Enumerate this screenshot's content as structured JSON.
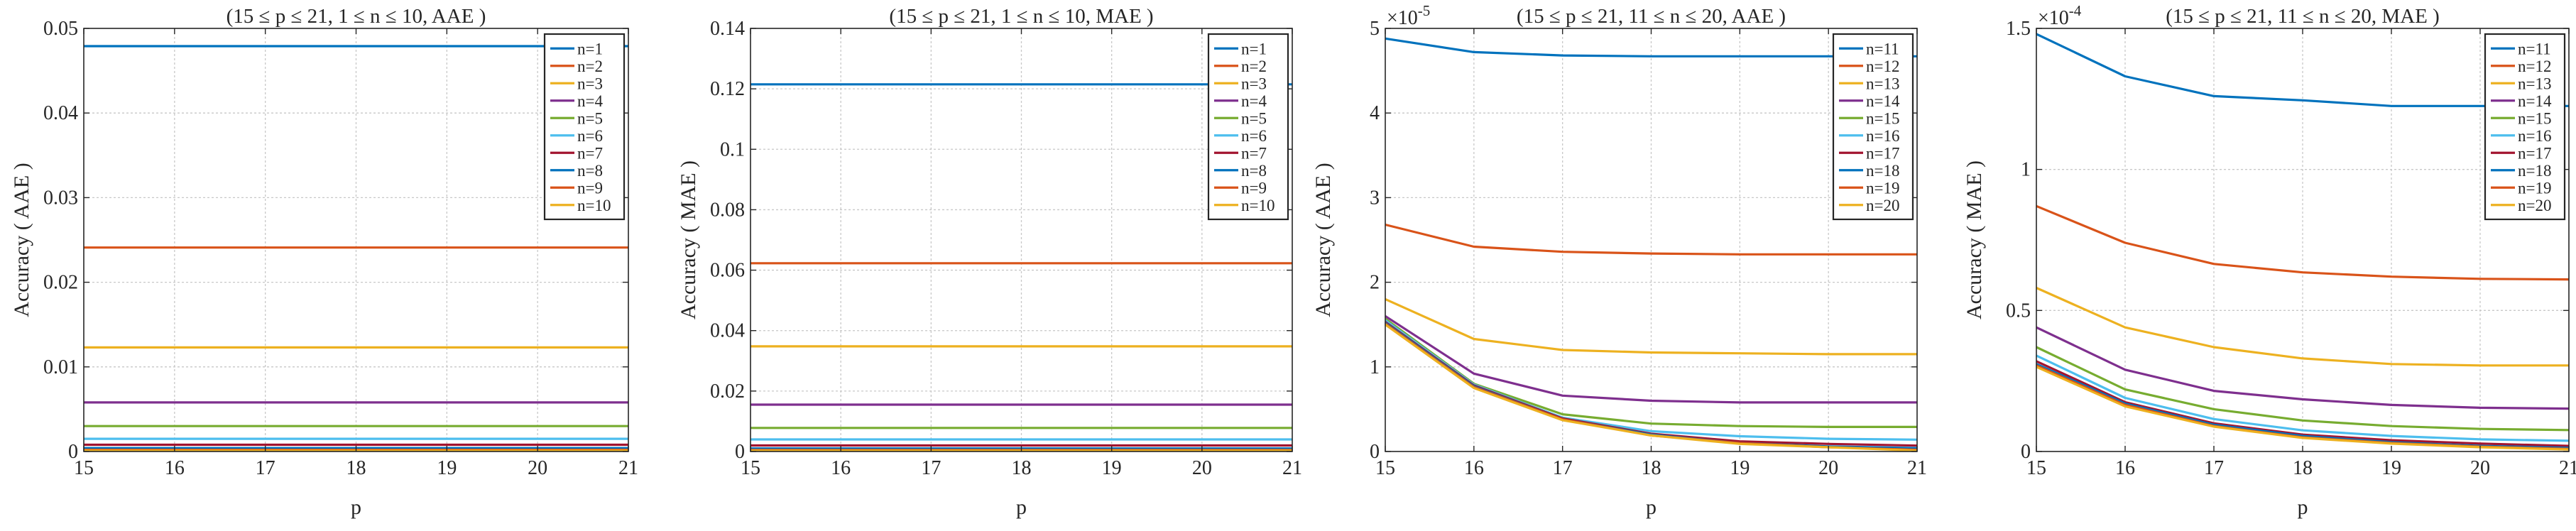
{
  "figure": {
    "panels": [
      {
        "title": "(15 ≤ p ≤ 21, 1 ≤ n ≤ 10, AAE )",
        "xlabel": "p",
        "ylabel": "Accuracy ( AAE )",
        "ytick_labels": [
          "0",
          "0.01",
          "0.02",
          "0.03",
          "0.04",
          "0.05"
        ]
      },
      {
        "title": "(15 ≤ p ≤ 21, 1 ≤ n ≤ 10, MAE )",
        "xlabel": "p",
        "ylabel": "Accuracy ( MAE )",
        "ytick_labels": [
          "0",
          "0.02",
          "0.04",
          "0.06",
          "0.08",
          "0.1",
          "0.12",
          "0.14"
        ]
      },
      {
        "title": "(15 ≤ p ≤ 21, 11 ≤ n ≤ 20, AAE )",
        "xlabel": "p",
        "ylabel": "Accuracy ( AAE )",
        "ytick_labels": [
          "0",
          "1",
          "2",
          "3",
          "4",
          "5"
        ],
        "exponent_base": "×10",
        "exponent_power": "-5"
      },
      {
        "title": "(15 ≤ p ≤ 21, 11 ≤ n ≤ 20, MAE )",
        "xlabel": "p",
        "ylabel": "Accuracy ( MAE )",
        "ytick_labels": [
          "0",
          "0.5",
          "1",
          "1.5"
        ],
        "exponent_base": "×10",
        "exponent_power": "-4"
      }
    ]
  },
  "chart_data": [
    {
      "type": "line",
      "title": "(15 ≤ p ≤ 21, 1 ≤ n ≤ 10, AAE )",
      "xlabel": "p",
      "ylabel": "Accuracy ( AAE )",
      "x": [
        15,
        16,
        17,
        18,
        19,
        20,
        21
      ],
      "xlim": [
        15,
        21
      ],
      "ylim": [
        0,
        0.05
      ],
      "yticks": [
        0,
        0.01,
        0.02,
        0.03,
        0.04,
        0.05
      ],
      "grid": true,
      "legend_position": "top-right",
      "series": [
        {
          "name": "n=1",
          "color": "#0072BD",
          "values": [
            0.0479,
            0.0479,
            0.0479,
            0.0479,
            0.0479,
            0.0479,
            0.0479
          ]
        },
        {
          "name": "n=2",
          "color": "#D95319",
          "values": [
            0.0241,
            0.0241,
            0.0241,
            0.0241,
            0.0241,
            0.0241,
            0.0241
          ]
        },
        {
          "name": "n=3",
          "color": "#EDB120",
          "values": [
            0.0123,
            0.0123,
            0.0123,
            0.0123,
            0.0123,
            0.0123,
            0.0123
          ]
        },
        {
          "name": "n=4",
          "color": "#7E2F8E",
          "values": [
            0.0058,
            0.0058,
            0.0058,
            0.0058,
            0.0058,
            0.0058,
            0.0058
          ]
        },
        {
          "name": "n=5",
          "color": "#77AC30",
          "values": [
            0.003,
            0.003,
            0.003,
            0.003,
            0.003,
            0.003,
            0.003
          ]
        },
        {
          "name": "n=6",
          "color": "#4DBEEE",
          "values": [
            0.0015,
            0.0015,
            0.0015,
            0.0015,
            0.0015,
            0.0015,
            0.0015
          ]
        },
        {
          "name": "n=7",
          "color": "#A2142F",
          "values": [
            0.0008,
            0.0008,
            0.0008,
            0.0008,
            0.0008,
            0.0008,
            0.0008
          ]
        },
        {
          "name": "n=8",
          "color": "#0072BD",
          "values": [
            0.0004,
            0.0004,
            0.0004,
            0.0004,
            0.0004,
            0.0004,
            0.0004
          ]
        },
        {
          "name": "n=9",
          "color": "#D95319",
          "values": [
            0.0002,
            0.0002,
            0.0002,
            0.0002,
            0.0002,
            0.0002,
            0.0002
          ]
        },
        {
          "name": "n=10",
          "color": "#EDB120",
          "values": [
            0.0001,
            0.0001,
            0.0001,
            0.0001,
            0.0001,
            0.0001,
            0.0001
          ]
        }
      ]
    },
    {
      "type": "line",
      "title": "(15 ≤ p ≤ 21, 1 ≤ n ≤ 10, MAE )",
      "xlabel": "p",
      "ylabel": "Accuracy ( MAE )",
      "x": [
        15,
        16,
        17,
        18,
        19,
        20,
        21
      ],
      "xlim": [
        15,
        21
      ],
      "ylim": [
        0,
        0.14
      ],
      "yticks": [
        0,
        0.02,
        0.04,
        0.06,
        0.08,
        0.1,
        0.12,
        0.14
      ],
      "grid": true,
      "legend_position": "top-right",
      "series": [
        {
          "name": "n=1",
          "color": "#0072BD",
          "values": [
            0.1215,
            0.1215,
            0.1215,
            0.1215,
            0.1215,
            0.1215,
            0.1215
          ]
        },
        {
          "name": "n=2",
          "color": "#D95319",
          "values": [
            0.0623,
            0.0623,
            0.0623,
            0.0623,
            0.0623,
            0.0623,
            0.0623
          ]
        },
        {
          "name": "n=3",
          "color": "#EDB120",
          "values": [
            0.0348,
            0.0348,
            0.0348,
            0.0348,
            0.0348,
            0.0348,
            0.0348
          ]
        },
        {
          "name": "n=4",
          "color": "#7E2F8E",
          "values": [
            0.0155,
            0.0155,
            0.0155,
            0.0155,
            0.0155,
            0.0155,
            0.0155
          ]
        },
        {
          "name": "n=5",
          "color": "#77AC30",
          "values": [
            0.0078,
            0.0078,
            0.0078,
            0.0078,
            0.0078,
            0.0078,
            0.0078
          ]
        },
        {
          "name": "n=6",
          "color": "#4DBEEE",
          "values": [
            0.004,
            0.004,
            0.004,
            0.004,
            0.004,
            0.004,
            0.004
          ]
        },
        {
          "name": "n=7",
          "color": "#A2142F",
          "values": [
            0.002,
            0.002,
            0.002,
            0.002,
            0.002,
            0.002,
            0.002
          ]
        },
        {
          "name": "n=8",
          "color": "#0072BD",
          "values": [
            0.001,
            0.001,
            0.001,
            0.001,
            0.001,
            0.001,
            0.001
          ]
        },
        {
          "name": "n=9",
          "color": "#D95319",
          "values": [
            0.0005,
            0.0005,
            0.0005,
            0.0005,
            0.0005,
            0.0005,
            0.0005
          ]
        },
        {
          "name": "n=10",
          "color": "#EDB120",
          "values": [
            0.00025,
            0.00025,
            0.00025,
            0.00025,
            0.00025,
            0.00025,
            0.00025
          ]
        }
      ]
    },
    {
      "type": "line",
      "title": "(15 ≤ p ≤ 21, 11 ≤ n ≤ 20, AAE )",
      "xlabel": "p",
      "ylabel": "Accuracy ( AAE )",
      "y_scale_exponent": -5,
      "x": [
        15,
        16,
        17,
        18,
        19,
        20,
        21
      ],
      "xlim": [
        15,
        21
      ],
      "ylim": [
        0,
        5e-05
      ],
      "yticks": [
        0,
        1e-05,
        2e-05,
        3e-05,
        4e-05,
        5e-05
      ],
      "grid": true,
      "legend_position": "top-right",
      "series": [
        {
          "name": "n=11",
          "color": "#0072BD",
          "values": [
            4.88e-05,
            4.72e-05,
            4.68e-05,
            4.67e-05,
            4.67e-05,
            4.67e-05,
            4.67e-05
          ]
        },
        {
          "name": "n=12",
          "color": "#D95319",
          "values": [
            2.68e-05,
            2.42e-05,
            2.36e-05,
            2.34e-05,
            2.33e-05,
            2.33e-05,
            2.33e-05
          ]
        },
        {
          "name": "n=13",
          "color": "#EDB120",
          "values": [
            1.8e-05,
            1.33e-05,
            1.2e-05,
            1.17e-05,
            1.16e-05,
            1.15e-05,
            1.15e-05
          ]
        },
        {
          "name": "n=14",
          "color": "#7E2F8E",
          "values": [
            1.6e-05,
            9.2e-06,
            6.6e-06,
            6e-06,
            5.8e-06,
            5.8e-06,
            5.8e-06
          ]
        },
        {
          "name": "n=15",
          "color": "#77AC30",
          "values": [
            1.57e-05,
            8e-06,
            4.4e-06,
            3.3e-06,
            3e-06,
            2.9e-06,
            2.9e-06
          ]
        },
        {
          "name": "n=16",
          "color": "#4DBEEE",
          "values": [
            1.55e-05,
            7.9e-06,
            4e-06,
            2.4e-06,
            1.8e-06,
            1.5e-06,
            1.4e-06
          ]
        },
        {
          "name": "n=17",
          "color": "#A2142F",
          "values": [
            1.53e-05,
            7.8e-06,
            3.9e-06,
            2.1e-06,
            1.2e-06,
            9e-07,
            7e-07
          ]
        },
        {
          "name": "n=18",
          "color": "#0072BD",
          "values": [
            1.52e-05,
            7.7e-06,
            3.8e-06,
            2e-06,
            1e-06,
            6e-07,
            4e-07
          ]
        },
        {
          "name": "n=19",
          "color": "#D95319",
          "values": [
            1.51e-05,
            7.6e-06,
            3.8e-06,
            1.9e-06,
            1e-06,
            5e-07,
            2e-07
          ]
        },
        {
          "name": "n=20",
          "color": "#EDB120",
          "values": [
            1.5e-05,
            7.5e-06,
            3.7e-06,
            1.9e-06,
            9e-07,
            5e-07,
            1e-07
          ]
        }
      ]
    },
    {
      "type": "line",
      "title": "(15 ≤ p ≤ 21, 11 ≤ n ≤ 20, MAE )",
      "xlabel": "p",
      "ylabel": "Accuracy ( MAE )",
      "y_scale_exponent": -4,
      "x": [
        15,
        16,
        17,
        18,
        19,
        20,
        21
      ],
      "xlim": [
        15,
        21
      ],
      "ylim": [
        0,
        0.00015
      ],
      "yticks": [
        0,
        5e-05,
        0.0001,
        0.00015
      ],
      "grid": true,
      "legend_position": "top-right",
      "series": [
        {
          "name": "n=11",
          "color": "#0072BD",
          "values": [
            0.000148,
            0.000133,
            0.000126,
            0.0001245,
            0.0001225,
            0.0001225,
            0.0001225
          ]
        },
        {
          "name": "n=12",
          "color": "#D95319",
          "values": [
            8.7e-05,
            7.4e-05,
            6.65e-05,
            6.35e-05,
            6.2e-05,
            6.12e-05,
            6.1e-05
          ]
        },
        {
          "name": "n=13",
          "color": "#EDB120",
          "values": [
            5.8e-05,
            4.4e-05,
            3.7e-05,
            3.3e-05,
            3.1e-05,
            3.05e-05,
            3.05e-05
          ]
        },
        {
          "name": "n=14",
          "color": "#7E2F8E",
          "values": [
            4.4e-05,
            2.9e-05,
            2.15e-05,
            1.85e-05,
            1.65e-05,
            1.55e-05,
            1.52e-05
          ]
        },
        {
          "name": "n=15",
          "color": "#77AC30",
          "values": [
            3.7e-05,
            2.2e-05,
            1.5e-05,
            1.1e-05,
            9e-06,
            8e-06,
            7.6e-06
          ]
        },
        {
          "name": "n=16",
          "color": "#4DBEEE",
          "values": [
            3.4e-05,
            1.9e-05,
            1.15e-05,
            7.5e-06,
            5.5e-06,
            4.3e-06,
            3.8e-06
          ]
        },
        {
          "name": "n=17",
          "color": "#A2142F",
          "values": [
            3.2e-05,
            1.75e-05,
            1e-05,
            6e-06,
            4e-06,
            2.8e-06,
            2e-06
          ]
        },
        {
          "name": "n=18",
          "color": "#0072BD",
          "values": [
            3.1e-05,
            1.7e-05,
            9.5e-06,
            5.5e-06,
            3.3e-06,
            2e-06,
            1.3e-06
          ]
        },
        {
          "name": "n=19",
          "color": "#D95319",
          "values": [
            3.05e-05,
            1.65e-05,
            9e-06,
            5e-06,
            3e-06,
            1.7e-06,
            9e-07
          ]
        },
        {
          "name": "n=20",
          "color": "#EDB120",
          "values": [
            3e-05,
            1.6e-05,
            8.8e-06,
            4.8e-06,
            2.8e-06,
            1.5e-06,
            7e-07
          ]
        }
      ]
    }
  ]
}
